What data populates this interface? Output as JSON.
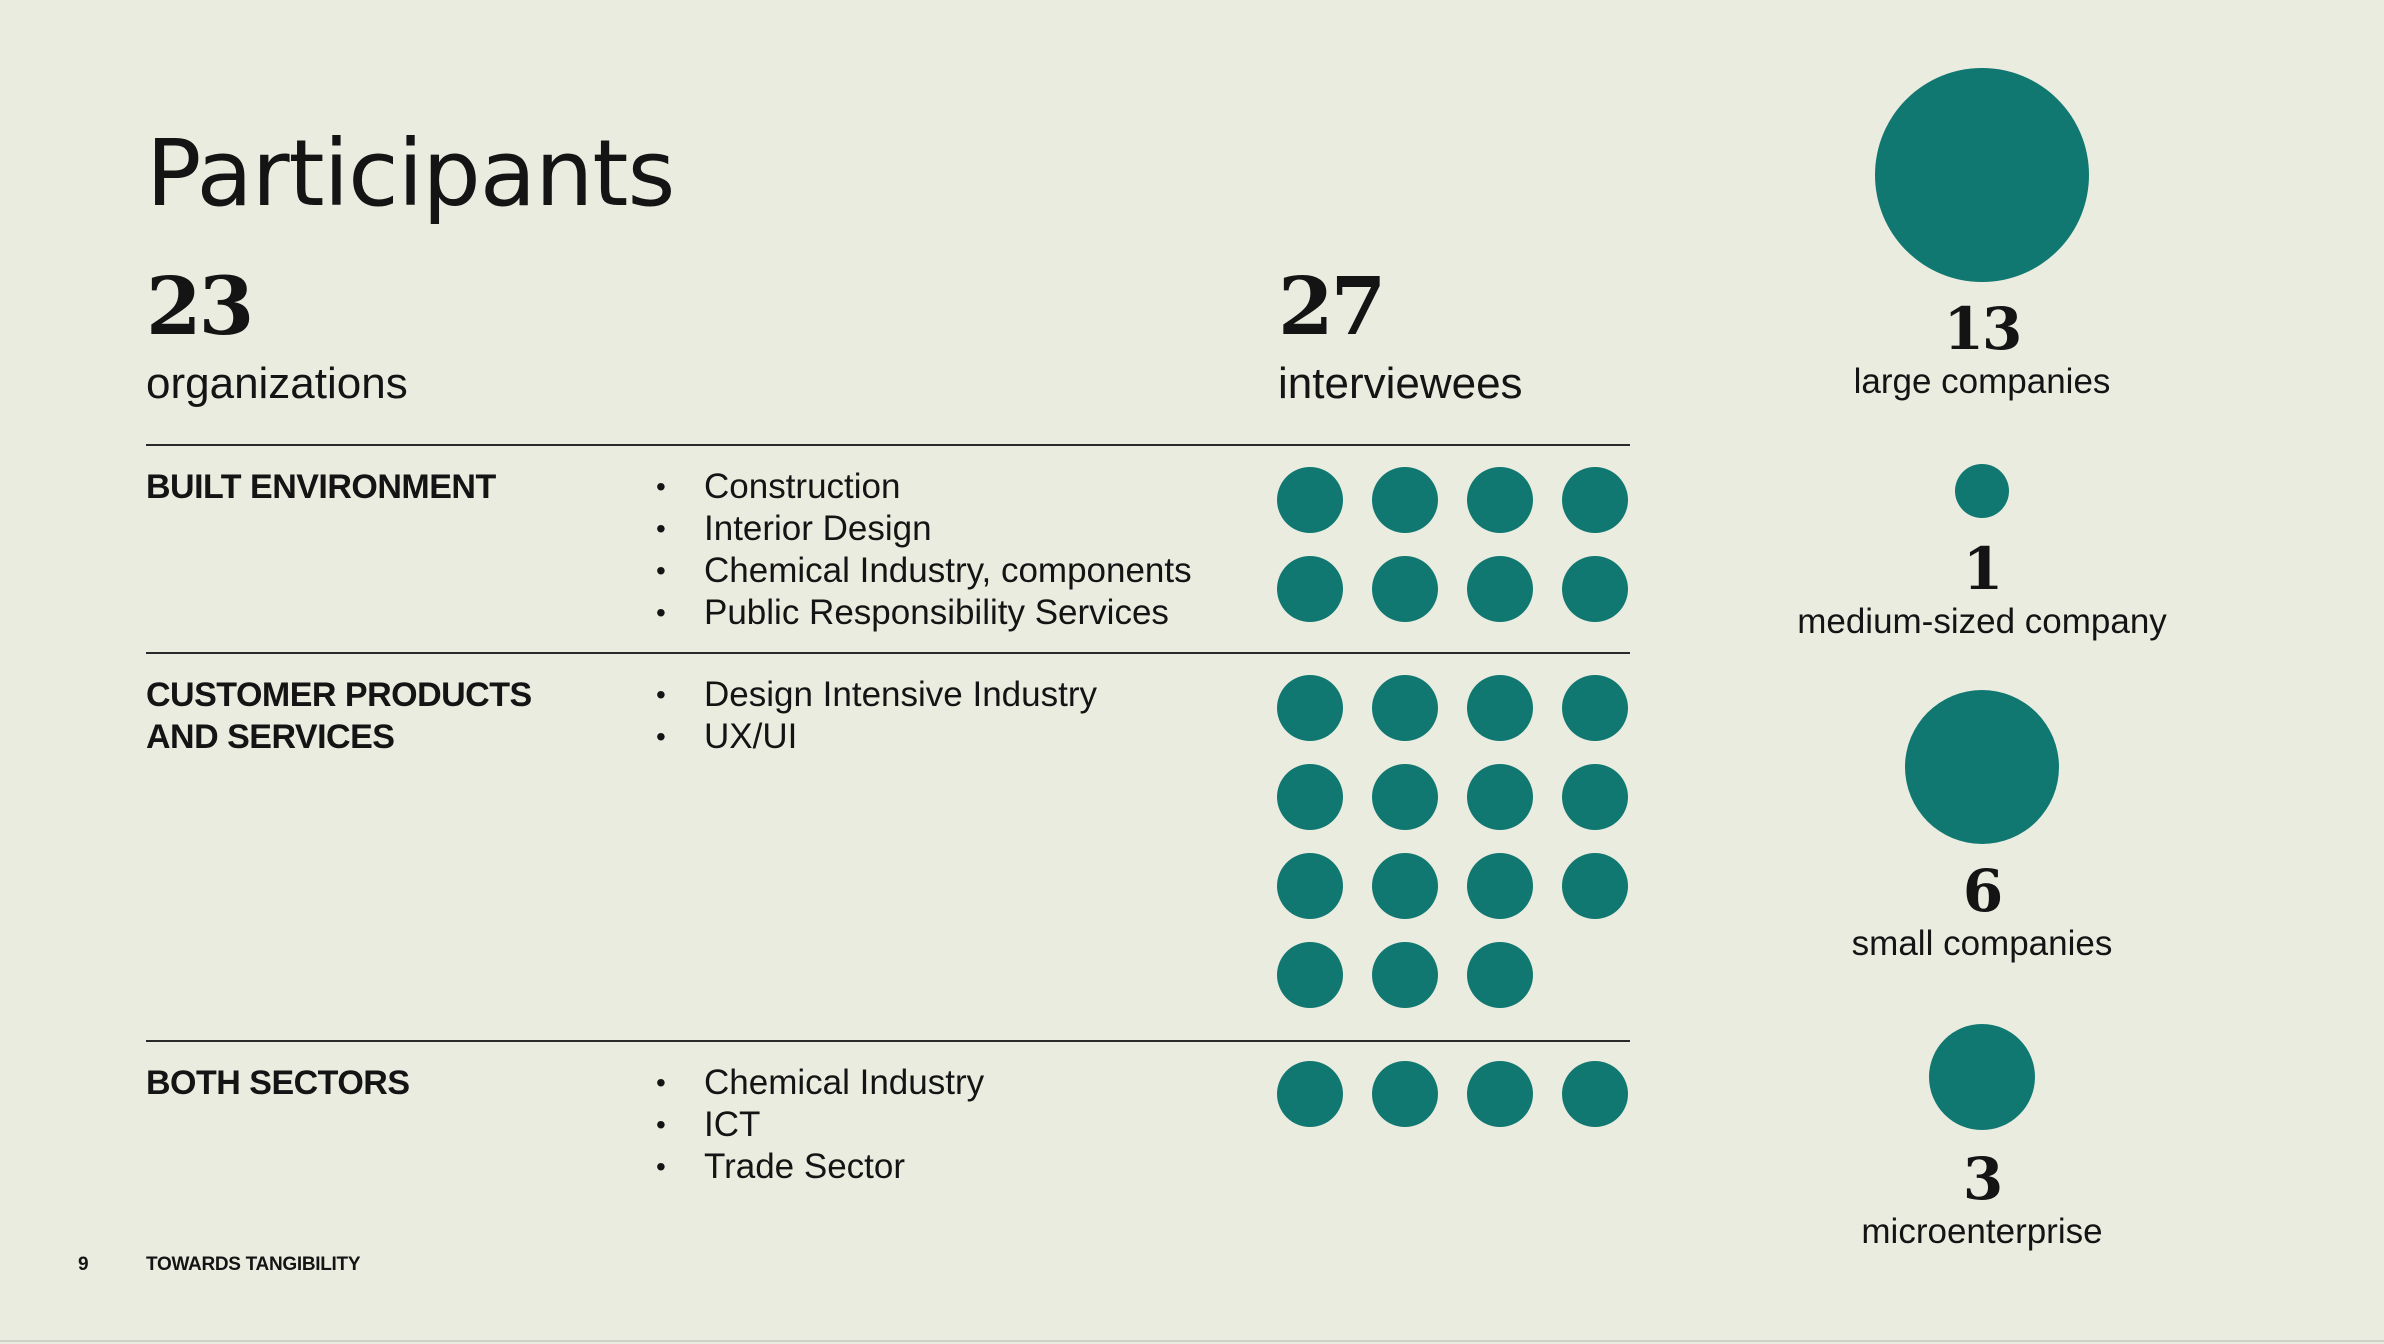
{
  "title": "Participants",
  "summary": {
    "organizations": {
      "number": "23",
      "label": "organizations"
    },
    "interviewees": {
      "number": "27",
      "label": "interviewees"
    }
  },
  "sectors": [
    {
      "name_lines": [
        "BUILT ENVIRONMENT"
      ],
      "industries": [
        "Construction",
        "Interior Design",
        "Chemical Industry, components",
        "Public Responsibility Services"
      ],
      "interviewee_count": 8
    },
    {
      "name_lines": [
        "CUSTOMER PRODUCTS",
        "AND SERVICES"
      ],
      "industries": [
        "Design Intensive Industry",
        "UX/UI"
      ],
      "interviewee_count": 15
    },
    {
      "name_lines": [
        "BOTH SECTORS"
      ],
      "industries": [
        "Chemical Industry",
        "ICT",
        "Trade Sector"
      ],
      "interviewee_count": 4
    }
  ],
  "company_sizes": [
    {
      "number": "13",
      "label": "large companies"
    },
    {
      "number": "1",
      "label": "medium-sized company"
    },
    {
      "number": "6",
      "label": "small companies"
    },
    {
      "number": "3",
      "label": "microenterprise"
    }
  ],
  "footer": {
    "page": "9",
    "doc_title": "TOWARDS TANGIBILITY"
  },
  "colors": {
    "accent": "#107871",
    "background": "#eaece0",
    "text": "#141414"
  }
}
